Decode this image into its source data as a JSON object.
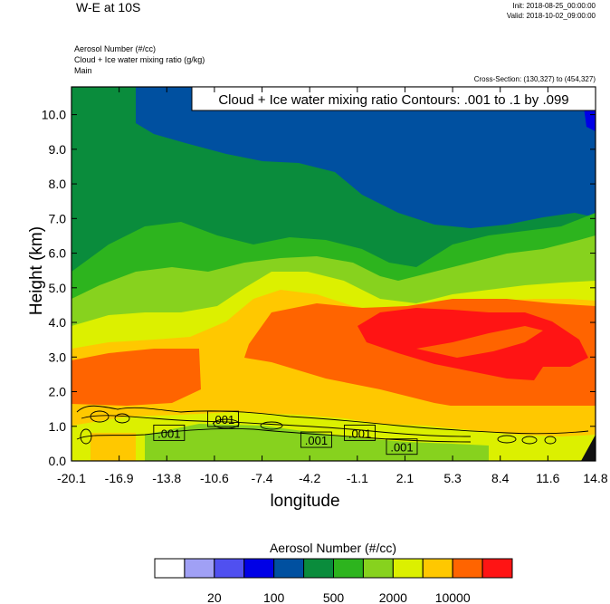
{
  "header": {
    "title": "W-E at 10S",
    "init": "Init: 2018-08-25_00:00:00",
    "valid": "Valid: 2018-10-02_09:00:00",
    "fields": [
      "Aerosol Number   (#/cc)",
      "Cloud + Ice water mixing ratio   (g/kg)",
      "Main"
    ],
    "cross_section": "Cross-Section: (130,327) to (454,327)"
  },
  "chart_data": {
    "type": "heatmap",
    "title": "Cloud + Ice water mixing ratio Contours: .001 to .1 by .099",
    "xlabel": "longitude",
    "ylabel": "Height (km)",
    "xlim": [
      -20.1,
      14.8
    ],
    "ylim": [
      0.0,
      10.8
    ],
    "x_ticks": [
      "-20.1",
      "-16.9",
      "-13.8",
      "-10.6",
      "-7.4",
      "-4.2",
      "-1.1",
      "2.1",
      "5.3",
      "8.4",
      "11.6",
      "14.8"
    ],
    "y_ticks": [
      {
        "value": 0.0,
        "label": "0.0"
      },
      {
        "value": 1.0,
        "label": "1.0"
      },
      {
        "value": 2.0,
        "label": "2.0"
      },
      {
        "value": 3.0,
        "label": "3.0"
      },
      {
        "value": 4.0,
        "label": "4.0"
      },
      {
        "value": 5.0,
        "label": "5.0"
      },
      {
        "value": 6.0,
        "label": "6.0"
      },
      {
        "value": 7.0,
        "label": "7.0"
      },
      {
        "value": 8.0,
        "label": "8.0"
      },
      {
        "value": 9.0,
        "label": "9.0"
      },
      {
        "value": 10.0,
        "label": "10.0"
      }
    ],
    "colorbar": {
      "title": "Aerosol Number  (#/cc)",
      "colors": [
        "#ffffff",
        "#a0a0f5",
        "#5050f0",
        "#0000e6",
        "#0050a0",
        "#0a8c3c",
        "#2db41e",
        "#87d21e",
        "#dcf000",
        "#ffc800",
        "#ff6400",
        "#ff1414"
      ],
      "labels": [
        {
          "after_box": 2,
          "text": "20"
        },
        {
          "after_box": 4,
          "text": "100"
        },
        {
          "after_box": 6,
          "text": "500"
        },
        {
          "after_box": 8,
          "text": "2000"
        },
        {
          "after_box": 10,
          "text": "10000"
        }
      ]
    },
    "contour_labels": [
      {
        "x": -13.6,
        "y": 0.8,
        "text": ".001"
      },
      {
        "x": -10.0,
        "y": 1.2,
        "text": ".001"
      },
      {
        "x": -3.8,
        "y": 0.6,
        "text": ".001"
      },
      {
        "x": -0.9,
        "y": 0.8,
        "text": ".001"
      },
      {
        "x": 1.9,
        "y": 0.4,
        "text": ".001"
      }
    ]
  }
}
